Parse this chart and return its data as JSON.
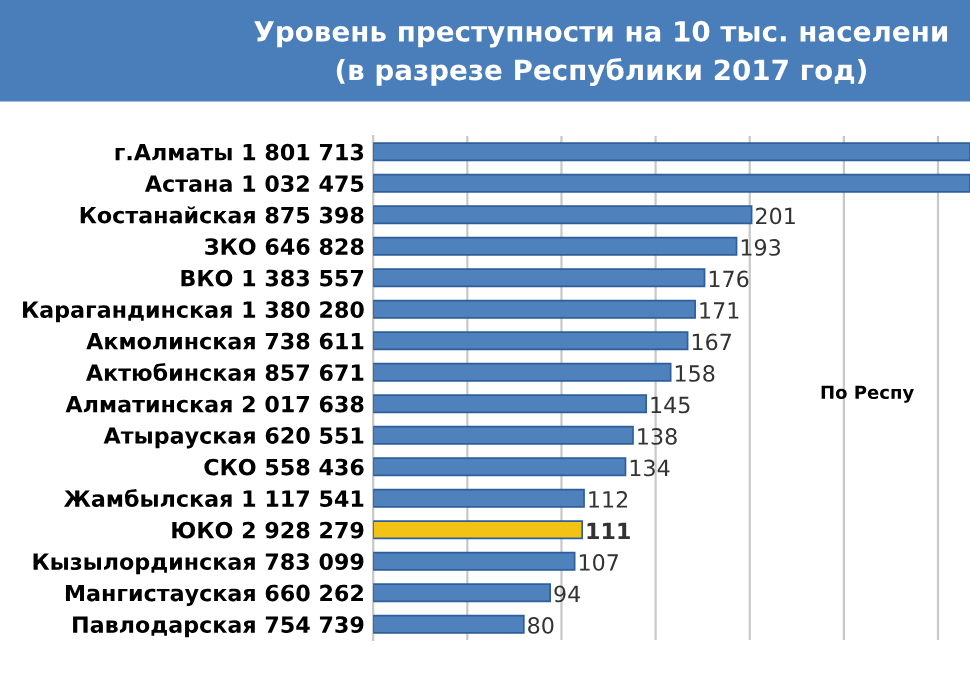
{
  "chart_data": {
    "type": "bar",
    "orientation": "horizontal",
    "title": "Уровень преступности на 10 тыс. населени",
    "subtitle": "(в разрезе Республики 2017 год)",
    "categories": [
      "г.Алматы 1 801 713",
      "Астана 1 032 475",
      "Костанайская 875 398",
      "ЗКО 646 828",
      "ВКО 1 383 557",
      "Карагандинская 1 380 280",
      "Акмолинская 738 611",
      "Актюбинская 857 671",
      "Алматинская 2 017 638",
      "Атырауская 620 551",
      "СКО 558 436",
      "Жамбылская 1 117 541",
      "ЮКО 2 928 279",
      "Кызылординская 783 099",
      "Мангистауская 660 262",
      "Павлодарская 754 739"
    ],
    "values": [
      317,
      317,
      201,
      193,
      176,
      171,
      167,
      158,
      145,
      138,
      134,
      112,
      111,
      107,
      94,
      80
    ],
    "value_labels": [
      null,
      null,
      "201",
      "193",
      "176",
      "171",
      "167",
      "158",
      "145",
      "138",
      "134",
      "112",
      "111",
      "107",
      "94",
      "80"
    ],
    "colors": [
      "#4f81bd",
      "#4f81bd",
      "#4f81bd",
      "#4f81bd",
      "#4f81bd",
      "#4f81bd",
      "#4f81bd",
      "#4f81bd",
      "#4f81bd",
      "#4f81bd",
      "#4f81bd",
      "#4f81bd",
      "#f2c314",
      "#4f81bd",
      "#4f81bd",
      "#4f81bd"
    ],
    "xlim": [
      0,
      317
    ],
    "xticks": [
      {
        "value": 50,
        "label": null
      },
      {
        "value": 100,
        "label": null
      },
      {
        "value": 150,
        "label": null
      },
      {
        "value": 200,
        "label": null
      },
      {
        "value": 250,
        "label": null
      },
      {
        "value": 300,
        "label": null
      }
    ],
    "grid": "x",
    "annotations": [
      "По Респу"
    ]
  }
}
